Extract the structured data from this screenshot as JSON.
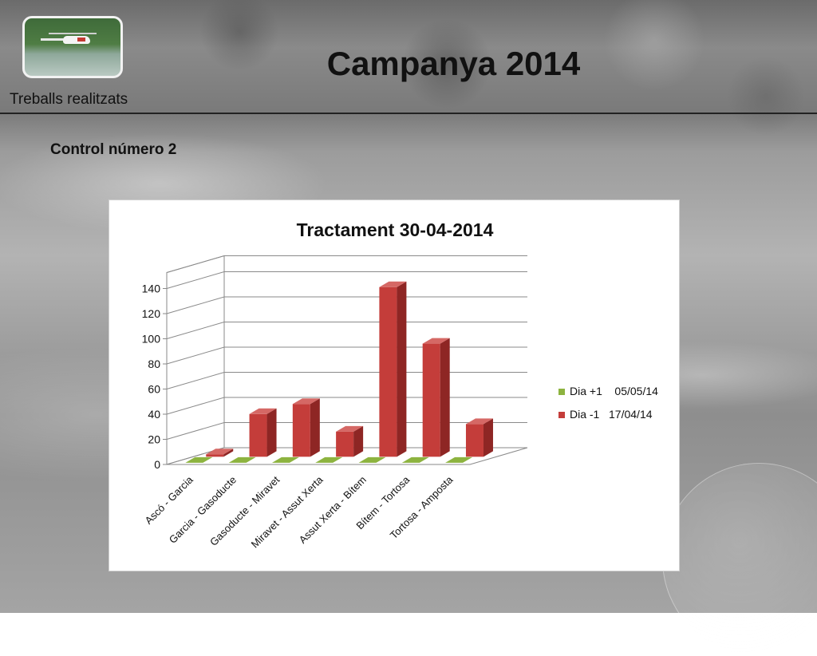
{
  "slide": {
    "title": "Campanya 2014",
    "subtitle": "Treballs realitzats",
    "section": "Control número 2"
  },
  "chart_data": {
    "type": "bar",
    "title": "Tractament 30-04-2014",
    "categories": [
      "Ascó - Garcia",
      "Garcia - Gasoducte",
      "Gasoducte - Miravet",
      "Miravet - Assut Xerta",
      "Assut Xerta - Bítem",
      "Bítem - Tortosa",
      "Tortosa - Amposta"
    ],
    "series": [
      {
        "name": "Dia +1    05/05/14",
        "values": [
          0,
          0,
          0,
          0,
          0,
          0,
          0
        ],
        "color": "#8db33f"
      },
      {
        "name": "Dia -1   17/04/14",
        "values": [
          2,
          34,
          42,
          20,
          135,
          90,
          26
        ],
        "color": "#c43d3a"
      }
    ],
    "yticks": [
      0,
      20,
      40,
      60,
      80,
      100,
      120,
      140
    ],
    "ylim": [
      0,
      140
    ],
    "grid": true,
    "legend": "right"
  }
}
